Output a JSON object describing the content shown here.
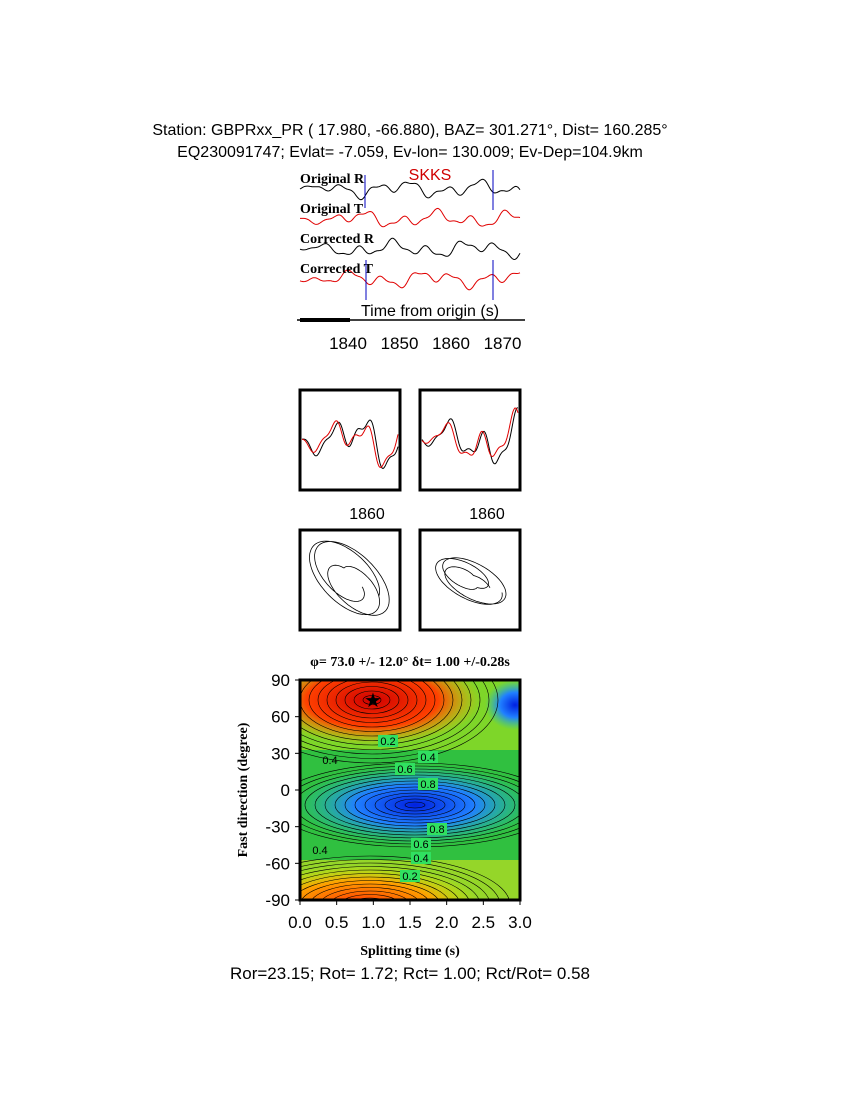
{
  "header": {
    "line1": "Station: GBPRxx_PR (  17.980,  -66.880), BAZ=  301.271°, Dist=  160.285°",
    "line2": "EQ230091747; Evlat=  -7.059, Ev-lon= 130.009; Ev-Dep=104.9km"
  },
  "traces": {
    "labels": [
      "Original R",
      "Original T",
      "Corrected R",
      "Corrected T"
    ],
    "phase": "SKKS",
    "axis_label": "Time from origin (s)",
    "ticks": [
      "1840",
      "1850",
      "1860",
      "1870"
    ]
  },
  "waveform_panels": {
    "ticks": [
      "1860",
      "1860"
    ]
  },
  "splitting_map": {
    "title": "φ= 73.0 +/- 12.0° δt= 1.00 +/-0.28s",
    "y_label": "Fast direction (degree)",
    "x_label": "Splitting time (s)",
    "yticks": [
      "90",
      "60",
      "30",
      "0",
      "-30",
      "-60",
      "-90"
    ],
    "xticks": [
      "0.0",
      "0.5",
      "1.0",
      "1.5",
      "2.0",
      "2.5",
      "3.0"
    ],
    "contour_labels": [
      "0.2",
      "0.4",
      "0.6",
      "0.8",
      "0.8",
      "0.6",
      "0.4",
      "0.2",
      "0.4",
      "0.4"
    ]
  },
  "footer": "Ror=23.15; Rot= 1.72; Rct= 1.00; Rct/Rot= 0.58"
}
